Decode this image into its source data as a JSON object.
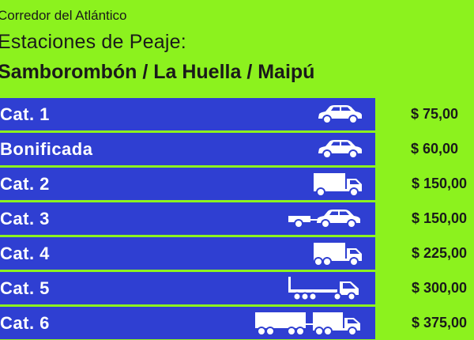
{
  "header": {
    "corridor": "Corredor del Atlántico",
    "stations_title": "Estaciones de Peaje:",
    "places": "Samborombón / La Huella / Maipú"
  },
  "rows": [
    {
      "category": "Cat. 1",
      "vehicle_icon": "car-icon",
      "price": "$ 75,00"
    },
    {
      "category": "Bonificada",
      "vehicle_icon": "car-icon",
      "price": "$ 60,00"
    },
    {
      "category": "Cat. 2",
      "vehicle_icon": "truck-icon",
      "price": "$ 150,00"
    },
    {
      "category": "Cat. 3",
      "vehicle_icon": "car-with-trailer-icon",
      "price": "$ 150,00"
    },
    {
      "category": "Cat. 4",
      "vehicle_icon": "truck-dual-axle-icon",
      "price": "$ 225,00"
    },
    {
      "category": "Cat. 5",
      "vehicle_icon": "semi-trailer-truck-icon",
      "price": "$ 300,00"
    },
    {
      "category": "Cat. 6",
      "vehicle_icon": "truck-with-trailer-icon",
      "price": "$ 375,00"
    }
  ],
  "colors": {
    "background": "#8cf21e",
    "category_band": "#2f3fd2",
    "text_dark": "#1a1a1a"
  }
}
